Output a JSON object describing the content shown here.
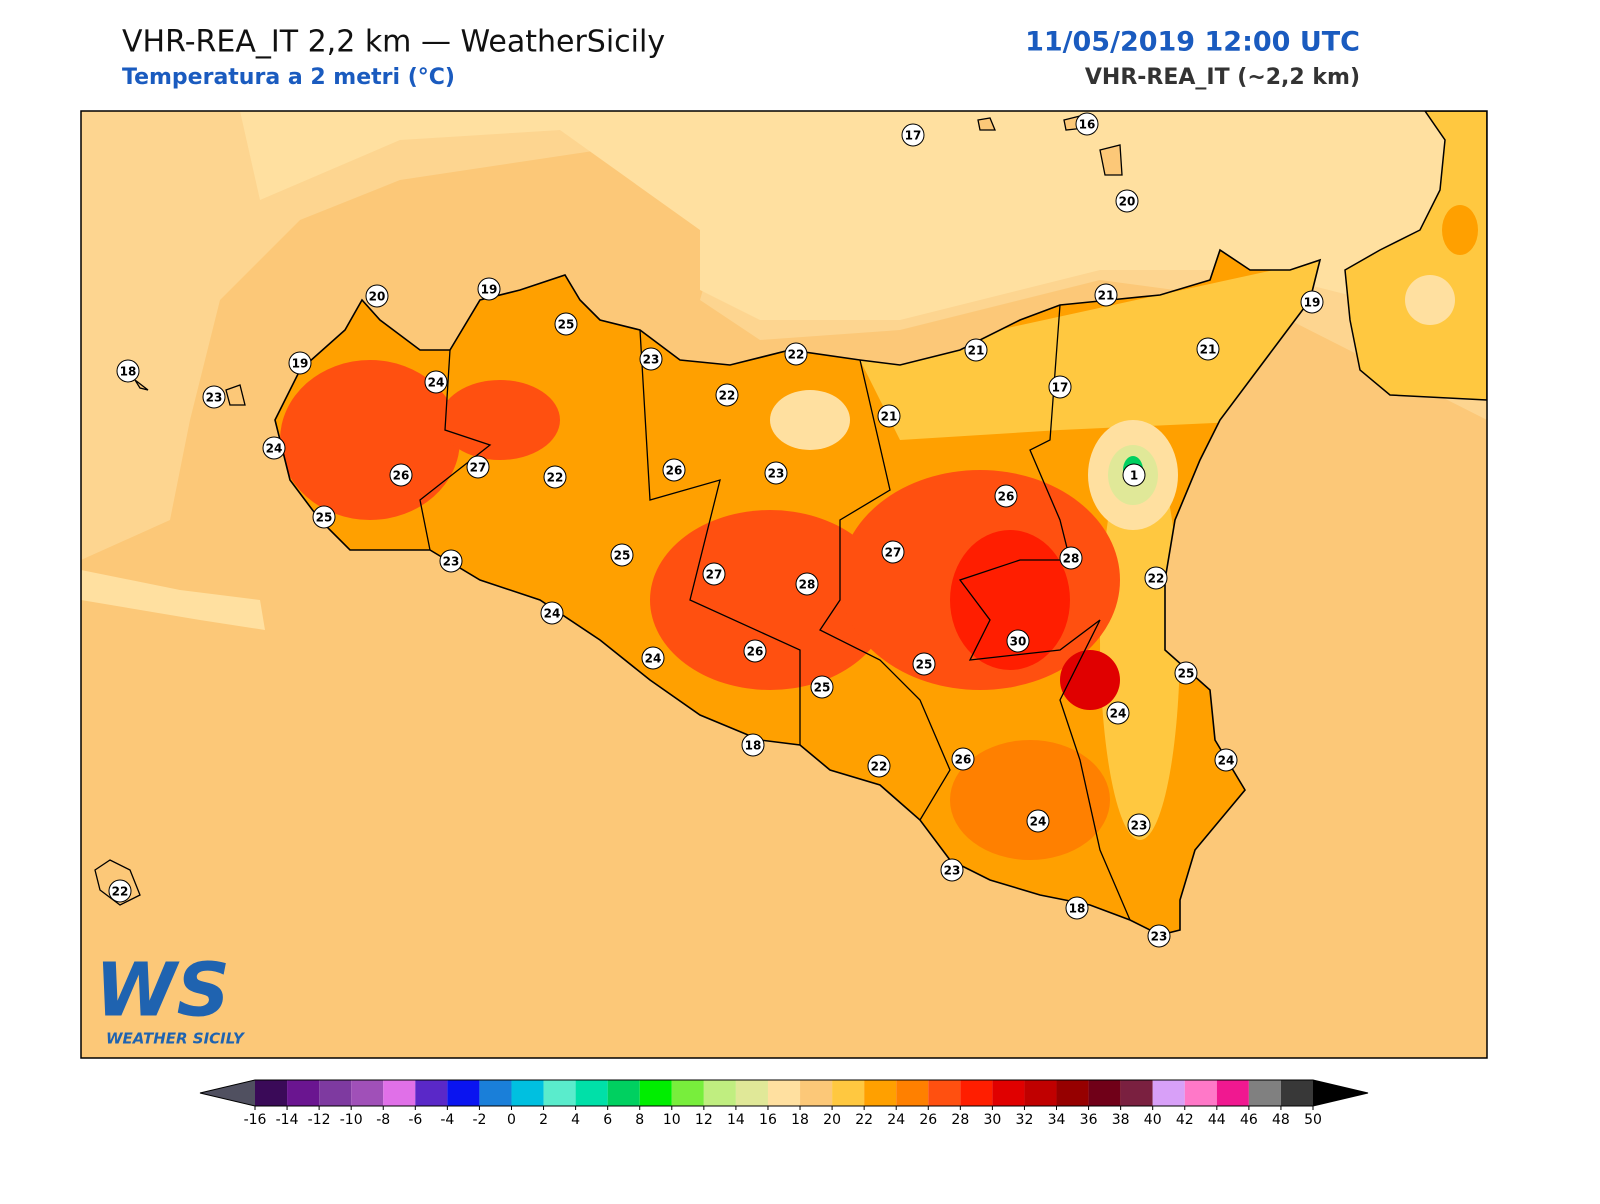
{
  "header": {
    "title": "VHR-REA_IT 2,2 km — WeatherSicily",
    "subtitle": "Temperatura a 2 metri (°C)",
    "date": "11/05/2019 12:00 UTC",
    "model": "VHR-REA_IT (~2,2 km)"
  },
  "stations": [
    17,
    16,
    20,
    21,
    19,
    21,
    20,
    19,
    25,
    23,
    22,
    21,
    17,
    18,
    19,
    24,
    23,
    22,
    21,
    24,
    26,
    27,
    22,
    26,
    23,
    1,
    26,
    25,
    25,
    27,
    28,
    23,
    27,
    28,
    22,
    24,
    30,
    24,
    26,
    25,
    25,
    25,
    24,
    18,
    22,
    26,
    24,
    24,
    23,
    23,
    22,
    18,
    23
  ],
  "logo": {
    "mark": "WS",
    "name": "WEATHER SICILY"
  },
  "colorbar": {
    "ticks": [
      -16,
      -14,
      -12,
      -10,
      -8,
      -6,
      -4,
      -2,
      0,
      2,
      4,
      6,
      8,
      10,
      12,
      14,
      16,
      18,
      20,
      22,
      24,
      26,
      28,
      30,
      32,
      34,
      36,
      38,
      40,
      42,
      44,
      46,
      48,
      50
    ],
    "colors": [
      "#3a0a58",
      "#6a1590",
      "#7e3aa0",
      "#a050b8",
      "#e070e8",
      "#5a28c8",
      "#0a14f0",
      "#1a7fd9",
      "#00c0e0",
      "#5aeccc",
      "#00e0a8",
      "#00d060",
      "#00ee00",
      "#78ee3c",
      "#c0ee80",
      "#e0e898",
      "#ffe0a0",
      "#fcc878",
      "#ffc840",
      "#ffa000",
      "#ff8000",
      "#ff5010",
      "#ff1e00",
      "#e00000",
      "#c00000",
      "#960000",
      "#700018",
      "#7a2040",
      "#d8a0f8",
      "#ff78c8",
      "#f01890",
      "#808080",
      "#383838"
    ],
    "under": "#505060",
    "over": "#000000"
  }
}
